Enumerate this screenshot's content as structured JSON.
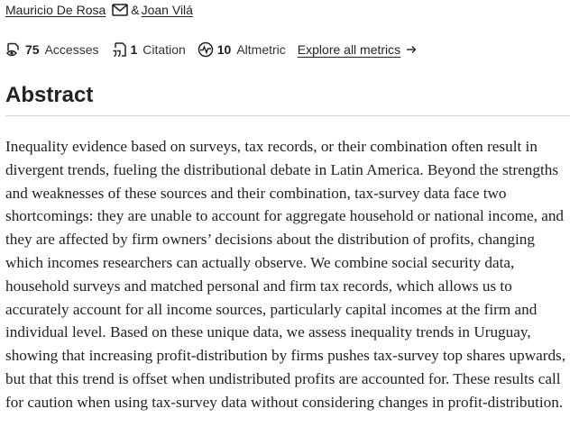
{
  "authors": {
    "first": "Mauricio De Rosa",
    "separator": "&",
    "second": "Joan Vilá"
  },
  "metrics": {
    "accesses": {
      "count": "75",
      "label": "Accesses",
      "icon": "eye-icon"
    },
    "citations": {
      "count": "1",
      "label": "Citation",
      "icon": "quote-icon"
    },
    "altmetric": {
      "count": "10",
      "label": "Altmetric",
      "icon": "altmetric-icon"
    },
    "explore_label": "Explore all metrics"
  },
  "abstract": {
    "heading": "Abstract",
    "text": "Inequality evidence based on surveys, tax records, or their combination often result in divergent trends, fueling the distributional debate in Latin America. Beyond the strengths and weaknesses of these sources and their combination, tax-survey data face two shortcomings: they are unable to account for aggregate household or national income, and they are affected by firm owners’ decisions about the distribution of profits, changing which incomes researchers can actually observe. We combine social security data, household surveys and matched personal and firm tax records, which allows us to accurately account for all income sources, particularly capital incomes at the firm and individual level. Based on these unique data, we assess inequality trends in Uruguay, showing that increasing profit-distribution by firms pushes tax-survey top shares upwards, but that this trend is offset when undistributed profits are accounted for. These results call for caution when using tax-survey data without considering changes in profit-distribution."
  }
}
